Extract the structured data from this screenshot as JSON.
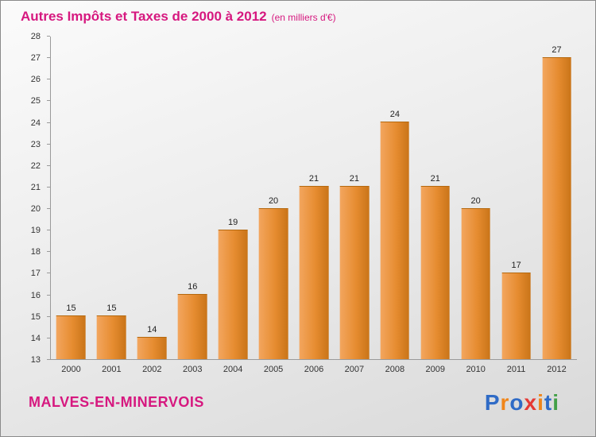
{
  "title": "Autres Impôts et Taxes de 2000 à 2012",
  "subtitle": "(en milliers d'€)",
  "footer": {
    "municipality": "MALVES-EN-MINERVOIS"
  },
  "logo": {
    "name": "Proxiti",
    "letters": [
      {
        "ch": "P",
        "color": "#2f6bc6"
      },
      {
        "ch": "r",
        "color": "#f08519"
      },
      {
        "ch": "o",
        "color": "#2f6bc6"
      },
      {
        "ch": "x",
        "color": "#e53935"
      },
      {
        "ch": "i",
        "color": "#f08519"
      },
      {
        "ch": "t",
        "color": "#2f6bc6"
      },
      {
        "ch": "i",
        "color": "#43a047"
      }
    ]
  },
  "colors": {
    "accent_pink": "#d6187f",
    "bar_light": "#f3a65f",
    "bar_dark": "#c97418",
    "background_top": "#fbfbfb",
    "background_bottom": "#d9d9d9"
  },
  "chart_data": {
    "type": "bar",
    "categories": [
      "2000",
      "2001",
      "2002",
      "2003",
      "2004",
      "2005",
      "2006",
      "2007",
      "2008",
      "2009",
      "2010",
      "2011",
      "2012"
    ],
    "values": [
      15,
      15,
      14,
      16,
      19,
      20,
      21,
      21,
      24,
      21,
      20,
      17,
      27
    ],
    "title": "Autres Impôts et Taxes de 2000 à 2012 (en milliers d'€)",
    "xlabel": "",
    "ylabel": "",
    "ylim": [
      13,
      28
    ],
    "ytick_step": 1,
    "grid": false,
    "legend": "none"
  }
}
